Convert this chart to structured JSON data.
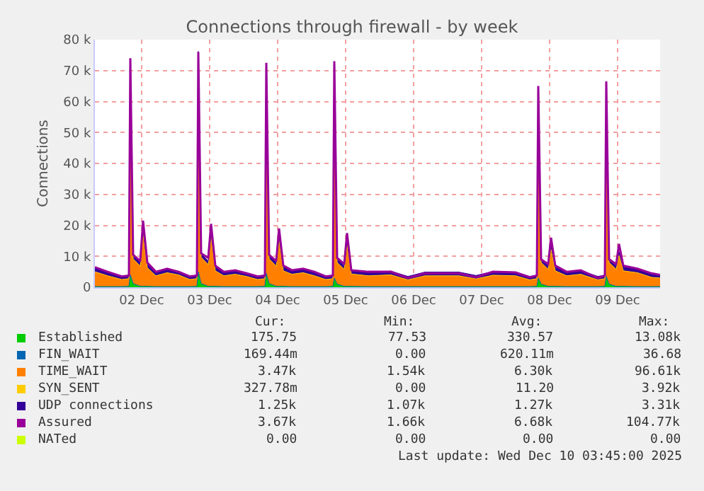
{
  "chart_data": {
    "type": "area",
    "title": "Connections through firewall - by week",
    "ylabel": "Connections",
    "stacked": true,
    "grid": true,
    "legend": "bottom",
    "x": [
      "2025-12-01T19:30",
      "2025-12-02T00:00",
      "2025-12-02T05:00",
      "2025-12-02T07:30",
      "2025-12-02T08:00",
      "2025-12-02T09:00",
      "2025-12-02T11:30",
      "2025-12-02T12:30",
      "2025-12-02T14:00",
      "2025-12-02T17:00",
      "2025-12-02T21:00",
      "2025-12-03T01:00",
      "2025-12-03T05:00",
      "2025-12-03T07:30",
      "2025-12-03T08:00",
      "2025-12-03T09:00",
      "2025-12-03T11:30",
      "2025-12-03T12:30",
      "2025-12-03T14:00",
      "2025-12-03T17:00",
      "2025-12-03T21:00",
      "2025-12-04T01:00",
      "2025-12-04T05:00",
      "2025-12-04T07:30",
      "2025-12-04T08:00",
      "2025-12-04T09:00",
      "2025-12-04T11:30",
      "2025-12-04T12:30",
      "2025-12-04T14:00",
      "2025-12-04T17:00",
      "2025-12-04T21:00",
      "2025-12-05T01:00",
      "2025-12-05T05:00",
      "2025-12-05T07:30",
      "2025-12-05T08:00",
      "2025-12-05T09:00",
      "2025-12-05T11:30",
      "2025-12-05T12:30",
      "2025-12-05T14:00",
      "2025-12-05T20:00",
      "2025-12-06T04:00",
      "2025-12-06T10:00",
      "2025-12-06T16:00",
      "2025-12-07T04:00",
      "2025-12-07T10:00",
      "2025-12-07T16:00",
      "2025-12-08T00:00",
      "2025-12-08T05:00",
      "2025-12-08T07:30",
      "2025-12-08T08:00",
      "2025-12-08T09:00",
      "2025-12-08T11:30",
      "2025-12-08T12:30",
      "2025-12-08T14:00",
      "2025-12-08T18:00",
      "2025-12-08T23:00",
      "2025-12-09T05:00",
      "2025-12-09T07:30",
      "2025-12-09T08:00",
      "2025-12-09T09:00",
      "2025-12-09T11:30",
      "2025-12-09T12:30",
      "2025-12-09T14:00",
      "2025-12-09T19:00",
      "2025-12-10T00:00",
      "2025-12-10T03:00"
    ],
    "xlim": [
      "2025-12-01T19:30",
      "2025-12-10T03:00"
    ],
    "xticks": [
      {
        "value": "2025-12-02T12:00",
        "label": "02 Dec"
      },
      {
        "value": "2025-12-03T12:00",
        "label": "03 Dec"
      },
      {
        "value": "2025-12-04T12:00",
        "label": "04 Dec"
      },
      {
        "value": "2025-12-05T12:00",
        "label": "05 Dec"
      },
      {
        "value": "2025-12-06T12:00",
        "label": "06 Dec"
      },
      {
        "value": "2025-12-07T12:00",
        "label": "07 Dec"
      },
      {
        "value": "2025-12-08T12:00",
        "label": "08 Dec"
      },
      {
        "value": "2025-12-09T12:00",
        "label": "09 Dec"
      }
    ],
    "ylim": [
      0,
      80000
    ],
    "yticks": [
      0,
      {
        "value": 10000,
        "label": "10 k"
      },
      {
        "value": 20000,
        "label": "20 k"
      },
      {
        "value": 30000,
        "label": "30 k"
      },
      {
        "value": 40000,
        "label": "40 k"
      },
      {
        "value": 50000,
        "label": "50 k"
      },
      {
        "value": 60000,
        "label": "60 k"
      },
      {
        "value": 70000,
        "label": "70 k"
      },
      {
        "value": 80000,
        "label": "80 k"
      }
    ],
    "series": [
      {
        "name": "Established",
        "color": "#00cc00",
        "values": [
          200,
          200,
          200,
          300,
          4000,
          1200,
          300,
          300,
          300,
          200,
          200,
          200,
          200,
          300,
          5000,
          1200,
          300,
          300,
          300,
          200,
          200,
          200,
          200,
          300,
          4500,
          1200,
          300,
          300,
          300,
          200,
          200,
          200,
          200,
          300,
          3000,
          1000,
          300,
          300,
          300,
          200,
          200,
          200,
          200,
          200,
          200,
          200,
          200,
          200,
          300,
          3000,
          1000,
          300,
          300,
          300,
          200,
          200,
          200,
          300,
          3500,
          1000,
          300,
          300,
          300,
          200,
          200,
          200
        ]
      },
      {
        "name": "FIN_WAIT",
        "color": "#0066b3",
        "values": [
          null,
          null,
          null,
          null,
          null,
          null,
          null,
          null,
          null,
          null,
          null,
          null,
          null,
          null,
          null,
          null,
          null,
          null,
          null,
          null,
          null,
          null,
          null,
          null,
          null,
          null,
          null,
          null,
          null,
          null,
          null,
          null,
          null,
          null,
          null,
          null,
          null,
          null,
          null,
          null,
          null,
          null,
          null,
          null,
          null,
          null,
          null,
          null,
          null,
          null,
          null,
          null,
          null,
          null,
          null,
          null,
          null,
          null,
          null,
          null,
          null,
          null,
          null,
          null,
          null,
          null
        ]
      },
      {
        "name": "TIME_WAIT",
        "color": "#ff8000",
        "values": [
          4800,
          3500,
          2300,
          2500,
          68000,
          8000,
          6500,
          17000,
          6000,
          3500,
          4500,
          3800,
          2300,
          2500,
          70000,
          8500,
          7000,
          16000,
          5000,
          3500,
          4000,
          3300,
          2300,
          2500,
          66000,
          8000,
          6500,
          15000,
          5000,
          4000,
          4500,
          3500,
          2300,
          2500,
          67000,
          7000,
          5500,
          13500,
          4000,
          3500,
          3800,
          2200,
          3500,
          3500,
          2500,
          3700,
          3500,
          2200,
          2500,
          60000,
          7000,
          5500,
          12000,
          5000,
          3500,
          4000,
          2200,
          2500,
          61000,
          7000,
          5500,
          10000,
          5000,
          4500,
          3000,
          2800
        ]
      },
      {
        "name": "SYN_SENT",
        "color": "#ffcc00",
        "values": [
          null,
          null,
          null,
          null,
          null,
          null,
          null,
          null,
          null,
          null,
          null,
          null,
          null,
          null,
          null,
          null,
          null,
          null,
          null,
          null,
          null,
          null,
          null,
          null,
          null,
          null,
          null,
          null,
          null,
          null,
          null,
          null,
          null,
          null,
          null,
          null,
          null,
          null,
          null,
          null,
          null,
          null,
          null,
          null,
          null,
          null,
          null,
          null,
          null,
          null,
          null,
          null,
          null,
          null,
          null,
          null,
          null,
          null,
          null,
          null,
          null,
          null,
          null,
          null,
          null,
          null
        ]
      },
      {
        "name": "UDP connections",
        "color": "#330099",
        "values": [
          1300,
          1200,
          1100,
          1100,
          1200,
          1200,
          1200,
          1200,
          1200,
          1200,
          1200,
          1200,
          1100,
          1100,
          1200,
          1200,
          1200,
          1200,
          1200,
          1200,
          1200,
          1200,
          1100,
          1100,
          1200,
          1200,
          1200,
          1200,
          1200,
          1200,
          1200,
          1200,
          1100,
          1100,
          1200,
          1200,
          1200,
          1200,
          1200,
          1200,
          1200,
          1100,
          1200,
          1200,
          1100,
          1200,
          1200,
          1100,
          1100,
          1200,
          1200,
          1200,
          1200,
          1200,
          1200,
          1200,
          1100,
          1100,
          1200,
          1200,
          1200,
          1200,
          1200,
          1200,
          1200,
          1100
        ]
      },
      {
        "name": "Assured",
        "color": "#990099",
        "type": "line",
        "values": [
          6500,
          5000,
          3500,
          3800,
          74000,
          10500,
          8500,
          21500,
          8000,
          5000,
          6000,
          5000,
          3500,
          3800,
          76000,
          11000,
          9500,
          20500,
          7000,
          5000,
          5500,
          4500,
          3500,
          3800,
          72500,
          10500,
          8500,
          19000,
          7000,
          5500,
          6000,
          5000,
          3500,
          3800,
          73000,
          9500,
          7500,
          17500,
          5500,
          5000,
          5000,
          3000,
          4500,
          4500,
          3200,
          5000,
          4800,
          3200,
          3800,
          65000,
          9000,
          7500,
          16000,
          7000,
          5000,
          5500,
          3000,
          3800,
          66500,
          9000,
          7500,
          14000,
          7000,
          6000,
          4500,
          4000
        ]
      },
      {
        "name": "NATed",
        "color": "#ccff00",
        "type": "line",
        "values": [
          null,
          null,
          null,
          null,
          null,
          null,
          null,
          null,
          null,
          null,
          null,
          null,
          null,
          null,
          null,
          null,
          null,
          null,
          null,
          null,
          null,
          null,
          null,
          null,
          null,
          null,
          null,
          null,
          null,
          null,
          null,
          null,
          null,
          null,
          null,
          null,
          null,
          null,
          null,
          null,
          null,
          null,
          null,
          null,
          null,
          null,
          null,
          null,
          null,
          null,
          null,
          null,
          null,
          null,
          null,
          null,
          null,
          null,
          null,
          null,
          null,
          null,
          null,
          null,
          null,
          null
        ]
      }
    ],
    "annotations": [
      "Cur:",
      "Min:",
      "Avg:",
      "Max:",
      "175.75",
      "77.53",
      "330.57",
      "13.08k",
      "169.44m",
      "0.00",
      "620.11m",
      "36.68",
      "3.47k",
      "1.54k",
      "6.30k",
      "96.61k",
      "327.78m",
      "0.00",
      "11.20",
      "3.92k",
      "1.25k",
      "1.07k",
      "1.27k",
      "3.31k",
      "3.67k",
      "1.66k",
      "6.68k",
      "104.77k",
      "0.00",
      "0.00",
      "0.00",
      "0.00",
      "Last update: Wed Dec 10 03:45:00 2025"
    ]
  }
}
